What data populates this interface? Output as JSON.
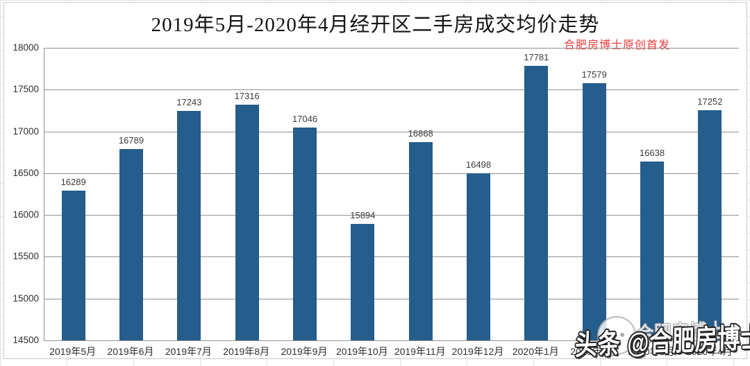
{
  "chart_data": {
    "type": "bar",
    "title": "2019年5月-2020年4月经开区二手房成交均价走势",
    "credit": "合肥房博士原创首发",
    "categories": [
      "2019年5月",
      "2019年6月",
      "2019年7月",
      "2019年8月",
      "2019年9月",
      "2019年10月",
      "2019年11月",
      "2019年12月",
      "2020年1月",
      "2020年2月",
      "2020年3月",
      "2020年4月"
    ],
    "values": [
      16289,
      16789,
      17243,
      17316,
      17046,
      15894,
      16868,
      16498,
      17781,
      17579,
      16638,
      17252
    ],
    "xlabel": "",
    "ylabel": "",
    "ylim": [
      14500,
      18000
    ],
    "yticks": [
      14500,
      15000,
      15500,
      16000,
      16500,
      17000,
      17500,
      18000
    ],
    "grid": true,
    "legend": "none",
    "bar_color": "#255d8c",
    "gridline_color": "#8f8f8f",
    "label_color": "#3a3a3a",
    "credit_color": "#f63b3b"
  },
  "watermark": {
    "text": "头条 @合肥房博士",
    "ghost_text": "合肥房博士",
    "logo": "hefei-fangboshi-mascot"
  }
}
